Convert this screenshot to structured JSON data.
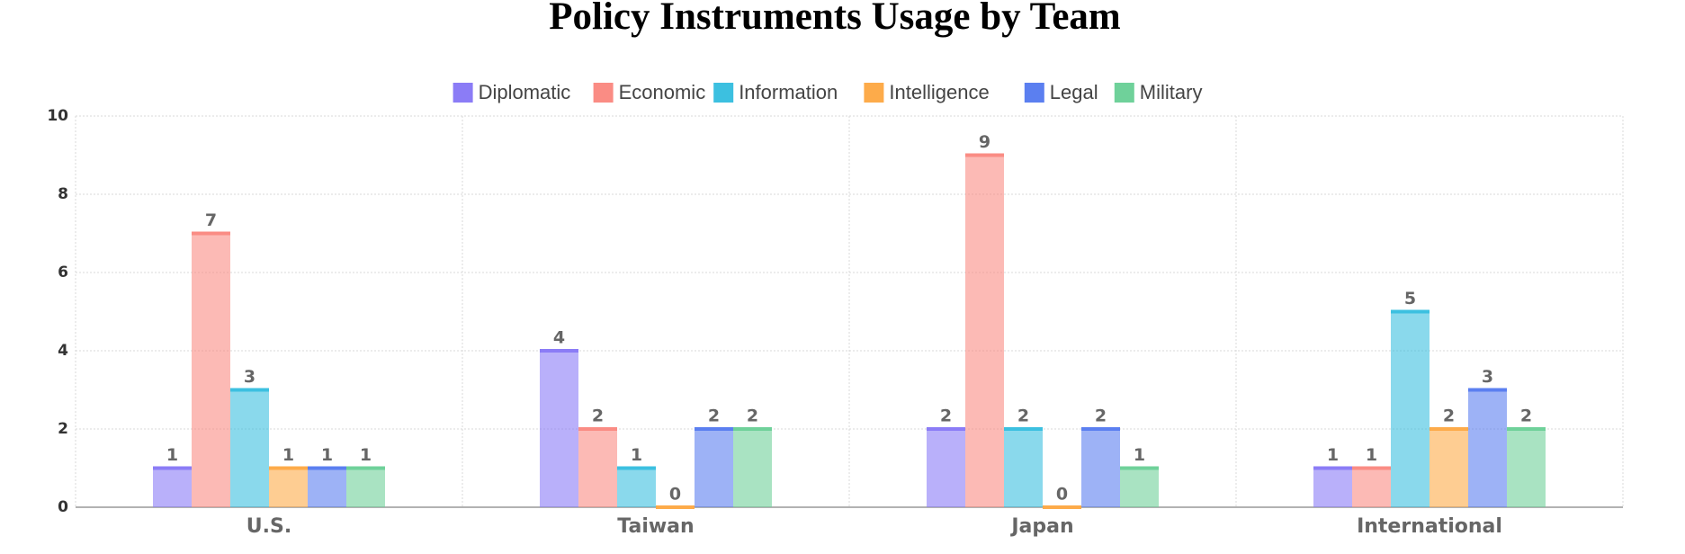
{
  "chart_data": {
    "type": "bar",
    "title": "Policy Instruments Usage by Team",
    "categories": [
      "U.S.",
      "Taiwan",
      "Japan",
      "International"
    ],
    "series": [
      {
        "name": "Diplomatic",
        "color": "#8b7cf6",
        "values": [
          1,
          4,
          2,
          1
        ]
      },
      {
        "name": "Economic",
        "color": "#fa8c84",
        "values": [
          7,
          2,
          9,
          1
        ]
      },
      {
        "name": "Information",
        "color": "#3cc0e0",
        "values": [
          3,
          1,
          2,
          5
        ]
      },
      {
        "name": "Intelligence",
        "color": "#fdab4a",
        "values": [
          1,
          0,
          0,
          2
        ]
      },
      {
        "name": "Legal",
        "color": "#5b7ff0",
        "values": [
          1,
          2,
          2,
          3
        ]
      },
      {
        "name": "Military",
        "color": "#6fd19a",
        "values": [
          1,
          2,
          1,
          2
        ]
      }
    ],
    "ylim": [
      0,
      10
    ],
    "yticks": [
      0,
      2,
      4,
      6,
      8,
      10
    ],
    "grid": true,
    "legend": "top"
  }
}
